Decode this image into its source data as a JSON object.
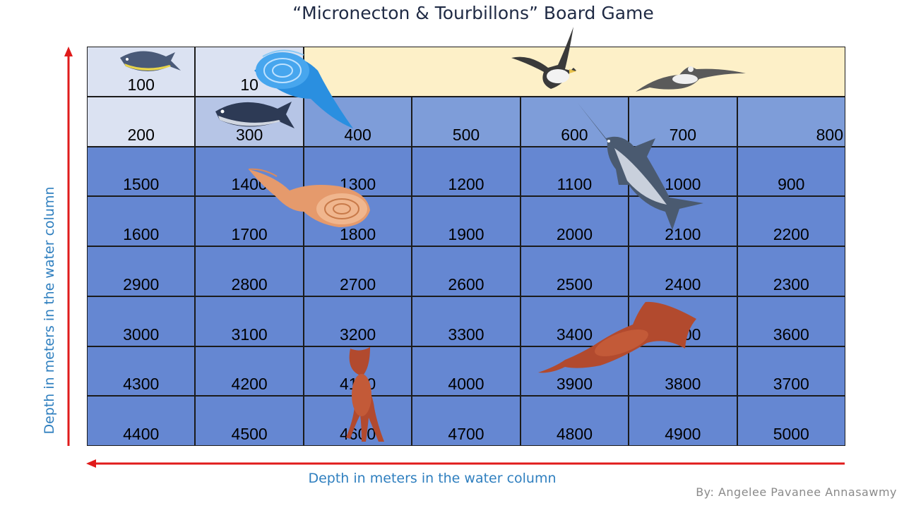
{
  "title": "“Micronecton & Tourbillons” Board Game",
  "vertical_axis_label": "Depth in meters in the water column",
  "horizontal_axis_label": "Depth in meters in the water column",
  "author": "By: Angelee Pavanee Annasawmy",
  "colors": {
    "surface": "#fdf0c8",
    "light_cell": "#dbe2f2",
    "mid_cell": "#b6c5e6",
    "sky_cell": "#7e9dd9",
    "deep_cell": "#6587d2",
    "arrow": "#e01b1b",
    "axis_text": "#2f7fbf"
  },
  "board": {
    "rows": [
      {
        "cells": [
          "100",
          "10"
        ]
      },
      {
        "cells": [
          "200",
          "300",
          "400",
          "500",
          "600",
          "700",
          "800"
        ]
      },
      {
        "cells": [
          "1500",
          "1400",
          "1300",
          "1200",
          "1100",
          "1000",
          "900"
        ]
      },
      {
        "cells": [
          "1600",
          "1700",
          "1800",
          "1900",
          "2000",
          "2100",
          "2200"
        ]
      },
      {
        "cells": [
          "2900",
          "2800",
          "2700",
          "2600",
          "2500",
          "2400",
          "2300"
        ]
      },
      {
        "cells": [
          "3000",
          "3100",
          "3200",
          "3300",
          "3400",
          "3500",
          "3600"
        ]
      },
      {
        "cells": [
          "4300",
          "4200",
          "4100",
          "4000",
          "3900",
          "3800",
          "3700"
        ]
      },
      {
        "cells": [
          "4400",
          "4500",
          "4600",
          "4700",
          "4800",
          "4900",
          "5000"
        ]
      }
    ]
  },
  "pieces": [
    {
      "name": "tuna-icon"
    },
    {
      "name": "tuna-icon"
    },
    {
      "name": "eddy-icon"
    },
    {
      "name": "seabird-icon"
    },
    {
      "name": "seagull-icon"
    },
    {
      "name": "swordfish-icon"
    },
    {
      "name": "shrimp-icon"
    },
    {
      "name": "squid-icon"
    },
    {
      "name": "squid-icon"
    }
  ]
}
